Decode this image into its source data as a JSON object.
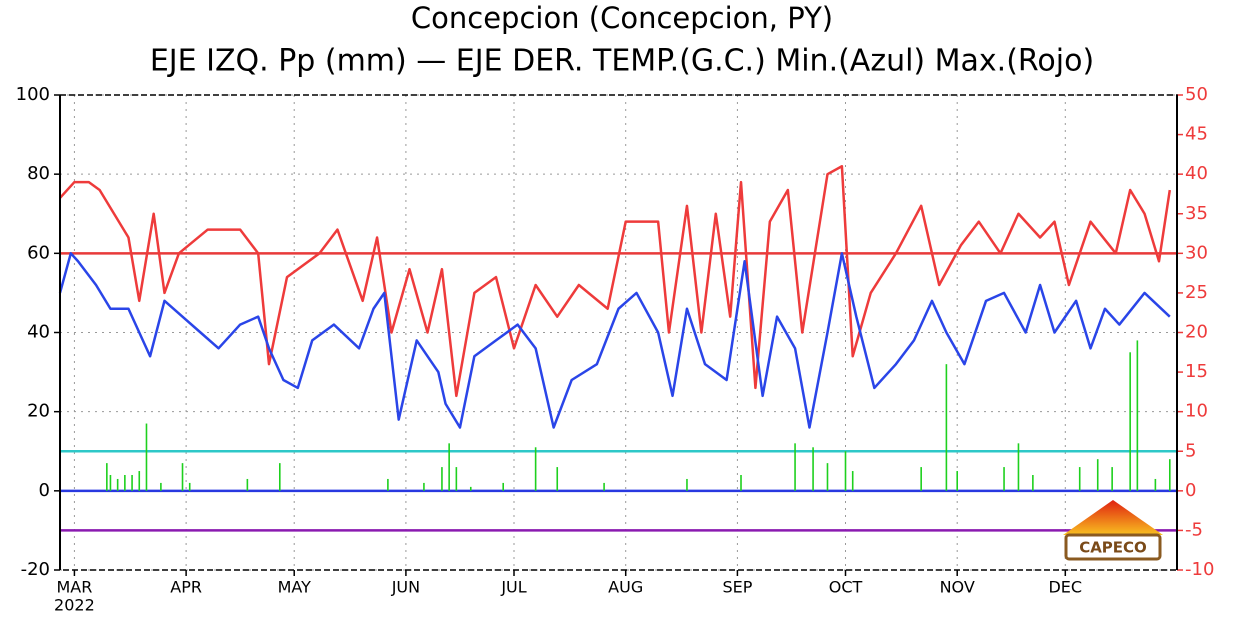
{
  "chart_data": {
    "type": "line",
    "title": "Concepcion (Concepcion, PY)",
    "subtitle": "EJE IZQ. Pp (mm) — EJE DER. TEMP.(G.C.) Min.(Azul) Max.(Rojo)",
    "x_sublabel": "2022",
    "logo": "CAPECO",
    "xlim": [
      -4,
      306
    ],
    "xticks": [
      {
        "value": 0,
        "label": "MAR"
      },
      {
        "value": 31,
        "label": "APR"
      },
      {
        "value": 61,
        "label": "MAY"
      },
      {
        "value": 92,
        "label": "JUN"
      },
      {
        "value": 122,
        "label": "JUL"
      },
      {
        "value": 153,
        "label": "AUG"
      },
      {
        "value": 184,
        "label": "SEP"
      },
      {
        "value": 214,
        "label": "OCT"
      },
      {
        "value": 245,
        "label": "NOV"
      },
      {
        "value": 275,
        "label": "DEC"
      }
    ],
    "ylim": [
      -20,
      100
    ],
    "yticks": [
      -20,
      0,
      20,
      40,
      60,
      80,
      100
    ],
    "y2lim": [
      -10,
      50
    ],
    "y2ticks": [
      -10,
      -5,
      0,
      5,
      10,
      15,
      20,
      25,
      30,
      35,
      40,
      45,
      50
    ],
    "grid": true,
    "reference_lines": [
      {
        "value": 30,
        "color": "#e83a3a",
        "axis": "y2"
      },
      {
        "value": 5,
        "color": "#2ec8c8",
        "axis": "y2"
      },
      {
        "value": 0,
        "color": "#2838e0",
        "axis": "y2"
      },
      {
        "value": -5,
        "color": "#8a1ab0",
        "axis": "y2"
      }
    ],
    "series": [
      {
        "kind": "line",
        "axis": "y2",
        "color": "#ee3b3b",
        "x": [
          -4,
          0,
          4,
          7,
          11,
          15,
          18,
          22,
          25,
          29,
          37,
          46,
          51,
          54,
          59,
          68,
          73,
          80,
          84,
          88,
          93,
          98,
          102,
          106,
          111,
          117,
          122,
          128,
          134,
          140,
          148,
          153,
          162,
          165,
          170,
          174,
          178,
          182,
          185,
          189,
          193,
          198,
          202,
          209,
          213,
          216,
          221,
          228,
          235,
          240,
          246,
          251,
          257,
          262,
          268,
          272,
          276,
          282,
          289,
          293,
          297,
          301,
          304
        ],
        "values": [
          37,
          39,
          39,
          38,
          35,
          32,
          24,
          35,
          25,
          30,
          33,
          33,
          30,
          16,
          27,
          30,
          33,
          24,
          32,
          20,
          28,
          20,
          28,
          12,
          25,
          27,
          18,
          26,
          22,
          26,
          23,
          34,
          34,
          20,
          36,
          20,
          35,
          22,
          39,
          13,
          34,
          38,
          20,
          40,
          41,
          17,
          25,
          30,
          36,
          26,
          31,
          34,
          30,
          35,
          32,
          34,
          26,
          34,
          30,
          38,
          35,
          29,
          38
        ]
      },
      {
        "kind": "line",
        "axis": "y2",
        "color": "#2a45e8",
        "x": [
          -4,
          -1,
          1,
          6,
          10,
          15,
          21,
          25,
          30,
          35,
          40,
          46,
          51,
          54,
          58,
          62,
          66,
          72,
          79,
          83,
          86,
          90,
          95,
          101,
          103,
          107,
          111,
          117,
          123,
          128,
          133,
          138,
          145,
          151,
          156,
          162,
          166,
          170,
          175,
          181,
          186,
          191,
          195,
          200,
          204,
          209,
          213,
          217,
          222,
          228,
          233,
          238,
          242,
          247,
          253,
          258,
          264,
          268,
          272,
          278,
          282,
          286,
          290,
          297,
          304
        ],
        "values": [
          25,
          30,
          29,
          26,
          23,
          23,
          17,
          24,
          22,
          20,
          18,
          21,
          22,
          18,
          14,
          13,
          19,
          21,
          18,
          23,
          25,
          9,
          19,
          15,
          11,
          8,
          17,
          19,
          21,
          18,
          8,
          14,
          16,
          23,
          25,
          20,
          12,
          23,
          16,
          14,
          29,
          12,
          22,
          18,
          8,
          20,
          30,
          22,
          13,
          16,
          19,
          24,
          20,
          16,
          24,
          25,
          20,
          26,
          20,
          24,
          18,
          23,
          21,
          25,
          22
        ]
      },
      {
        "kind": "bar",
        "axis": "y",
        "color": "#1ed01e",
        "x": [
          9,
          10,
          12,
          14,
          16,
          18,
          20,
          24,
          30,
          32,
          48,
          57,
          87,
          97,
          102,
          104,
          106,
          110,
          119,
          128,
          134,
          147,
          170,
          185,
          200,
          205,
          209,
          214,
          216,
          235,
          242,
          245,
          258,
          262,
          266,
          279,
          284,
          288,
          293,
          295,
          300,
          304
        ],
        "values": [
          7,
          4,
          3,
          4,
          4,
          5,
          17,
          2,
          7,
          2,
          3,
          7,
          3,
          2,
          6,
          12,
          6,
          1,
          2,
          11,
          6,
          2,
          3,
          4,
          12,
          11,
          7,
          10,
          5,
          6,
          32,
          5,
          6,
          12,
          4,
          6,
          8,
          6,
          35,
          38,
          3,
          8
        ]
      }
    ]
  }
}
